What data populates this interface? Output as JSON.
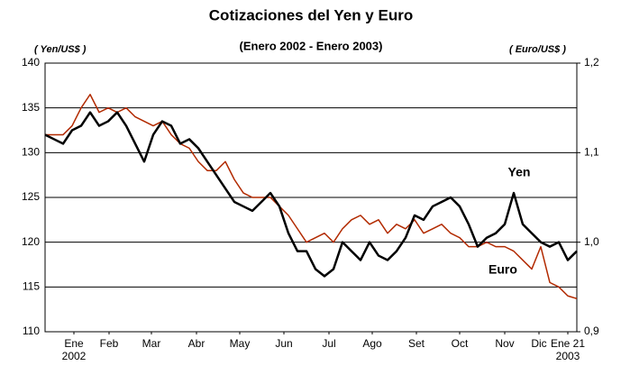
{
  "chart_data": {
    "type": "line",
    "title": "Cotizaciones del Yen y Euro",
    "subtitle": "(Enero 2002 - Enero 2003)",
    "y_label": "( Yen/US$ )",
    "y2_label": "( Euro/US$ )",
    "year_start": "2002",
    "year_end": "2003",
    "annotations": [
      "Yen",
      "Euro"
    ],
    "x": [
      0,
      1,
      2,
      3,
      4,
      5,
      6,
      7,
      8,
      9,
      10,
      11,
      12,
      13,
      14,
      15,
      16,
      17,
      18,
      19,
      20,
      21,
      22,
      23,
      24,
      25,
      26,
      27,
      28,
      29,
      30,
      31,
      32,
      33,
      34,
      35,
      36,
      37,
      38,
      39,
      40,
      41,
      42,
      43,
      44,
      45,
      46,
      47,
      48,
      49,
      50,
      51,
      52,
      53,
      54,
      55,
      56,
      57,
      58,
      59
    ],
    "xlim": [
      0,
      59
    ],
    "xticks": [
      {
        "value": 3.2,
        "label": "Ene"
      },
      {
        "value": 7.1,
        "label": "Feb"
      },
      {
        "value": 11.8,
        "label": "Mar"
      },
      {
        "value": 16.8,
        "label": "Abr"
      },
      {
        "value": 21.6,
        "label": "May"
      },
      {
        "value": 26.5,
        "label": "Jun"
      },
      {
        "value": 31.5,
        "label": "Jul"
      },
      {
        "value": 36.3,
        "label": "Ago"
      },
      {
        "value": 41.2,
        "label": "Set"
      },
      {
        "value": 46,
        "label": "Oct"
      },
      {
        "value": 51,
        "label": "Nov"
      },
      {
        "value": 54.8,
        "label": "Dic"
      },
      {
        "value": 58,
        "label": "Ene 21"
      }
    ],
    "ylim": [
      110,
      140
    ],
    "yticks": [
      110,
      115,
      120,
      125,
      130,
      135,
      140
    ],
    "y2lim": [
      0.9,
      1.2
    ],
    "y2ticks": [
      {
        "value": 0.9,
        "label": "0,9"
      },
      {
        "value": 1.0,
        "label": "1,0"
      },
      {
        "value": 1.1,
        "label": "1,1"
      },
      {
        "value": 1.2,
        "label": "1,2"
      }
    ],
    "grid": true,
    "series": [
      {
        "name": "Yen",
        "color": "#000000",
        "values": [
          132,
          131.5,
          131,
          132.5,
          133,
          134.5,
          133,
          133.5,
          134.5,
          133,
          131,
          129,
          132,
          133.5,
          133,
          131,
          131.5,
          130.5,
          129,
          127.5,
          126,
          124.5,
          124,
          123.5,
          124.5,
          125.5,
          124,
          121,
          119,
          119,
          117,
          116.2,
          117,
          120,
          119,
          118,
          120,
          118.5,
          118,
          119,
          120.5,
          123,
          122.5,
          124,
          124.5,
          125,
          124,
          122,
          119.5,
          120.5,
          121,
          122,
          125.5,
          122,
          121,
          120,
          119.5,
          120,
          118,
          119
        ]
      },
      {
        "name": "Euro",
        "color": "#b22a00",
        "axis": "y2",
        "values": [
          1.12,
          1.12,
          1.12,
          1.13,
          1.15,
          1.165,
          1.145,
          1.15,
          1.145,
          1.15,
          1.14,
          1.135,
          1.13,
          1.135,
          1.12,
          1.11,
          1.105,
          1.09,
          1.08,
          1.08,
          1.09,
          1.07,
          1.055,
          1.05,
          1.05,
          1.05,
          1.04,
          1.03,
          1.015,
          1.0,
          1.005,
          1.01,
          1.0,
          1.015,
          1.025,
          1.03,
          1.02,
          1.025,
          1.01,
          1.02,
          1.015,
          1.025,
          1.01,
          1.015,
          1.02,
          1.01,
          1.005,
          0.995,
          0.995,
          1.0,
          0.995,
          0.995,
          0.99,
          0.98,
          0.97,
          0.995,
          0.955,
          0.95,
          0.94,
          0.937
        ]
      }
    ]
  }
}
